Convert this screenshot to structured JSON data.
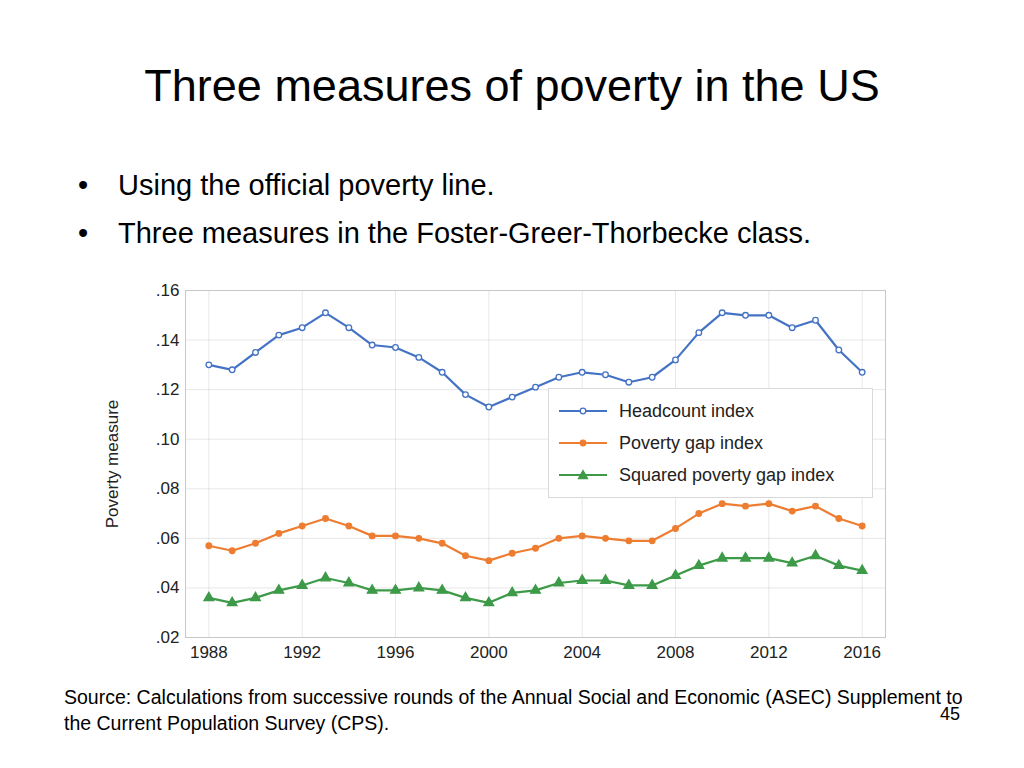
{
  "slide": {
    "title": "Three measures of poverty in the US",
    "bullets": [
      "Using the official poverty line.",
      "Three measures in the Foster-Greer-Thorbecke class."
    ],
    "source": "Source: Calculations from successive rounds of the Annual Social and Economic (ASEC) Supplement to the Current Population Survey (CPS).",
    "page_number": "45"
  },
  "chart_data": {
    "type": "line",
    "y_label": "Poverty measure",
    "x": [
      1988,
      1989,
      1990,
      1991,
      1992,
      1993,
      1994,
      1995,
      1996,
      1997,
      1998,
      1999,
      2000,
      2001,
      2002,
      2003,
      2004,
      2005,
      2006,
      2007,
      2008,
      2009,
      2010,
      2011,
      2012,
      2013,
      2014,
      2015,
      2016
    ],
    "series": [
      {
        "name": "Headcount index",
        "color": "#4472c4",
        "marker": "hollow-circle",
        "values": [
          0.13,
          0.128,
          0.135,
          0.142,
          0.145,
          0.151,
          0.145,
          0.138,
          0.137,
          0.133,
          0.127,
          0.118,
          0.113,
          0.117,
          0.121,
          0.125,
          0.127,
          0.126,
          0.123,
          0.125,
          0.132,
          0.143,
          0.151,
          0.15,
          0.15,
          0.145,
          0.148,
          0.136,
          0.127
        ]
      },
      {
        "name": "Poverty gap index",
        "color": "#ed7d31",
        "marker": "circle",
        "values": [
          0.057,
          0.055,
          0.058,
          0.062,
          0.065,
          0.068,
          0.065,
          0.061,
          0.061,
          0.06,
          0.058,
          0.053,
          0.051,
          0.054,
          0.056,
          0.06,
          0.061,
          0.06,
          0.059,
          0.059,
          0.064,
          0.07,
          0.074,
          0.073,
          0.074,
          0.071,
          0.073,
          0.068,
          0.065
        ]
      },
      {
        "name": "Squared poverty gap index",
        "color": "#3d9a48",
        "marker": "triangle",
        "values": [
          0.036,
          0.034,
          0.036,
          0.039,
          0.041,
          0.044,
          0.042,
          0.039,
          0.039,
          0.04,
          0.039,
          0.036,
          0.034,
          0.038,
          0.039,
          0.042,
          0.043,
          0.043,
          0.041,
          0.041,
          0.045,
          0.049,
          0.052,
          0.052,
          0.052,
          0.05,
          0.053,
          0.049,
          0.047
        ]
      }
    ],
    "xlim": [
      1987,
      2017
    ],
    "xticks": [
      1988,
      1992,
      1996,
      2000,
      2004,
      2008,
      2012,
      2016
    ],
    "ylim": [
      0.02,
      0.16
    ],
    "yticks": [
      {
        "value": 0.02,
        "label": ".02"
      },
      {
        "value": 0.04,
        "label": ".04"
      },
      {
        "value": 0.06,
        "label": ".06"
      },
      {
        "value": 0.08,
        "label": ".08"
      },
      {
        "value": 0.1,
        "label": ".10"
      },
      {
        "value": 0.12,
        "label": ".12"
      },
      {
        "value": 0.14,
        "label": ".14"
      },
      {
        "value": 0.16,
        "label": ".16"
      }
    ],
    "grid": true,
    "legend": "right"
  }
}
